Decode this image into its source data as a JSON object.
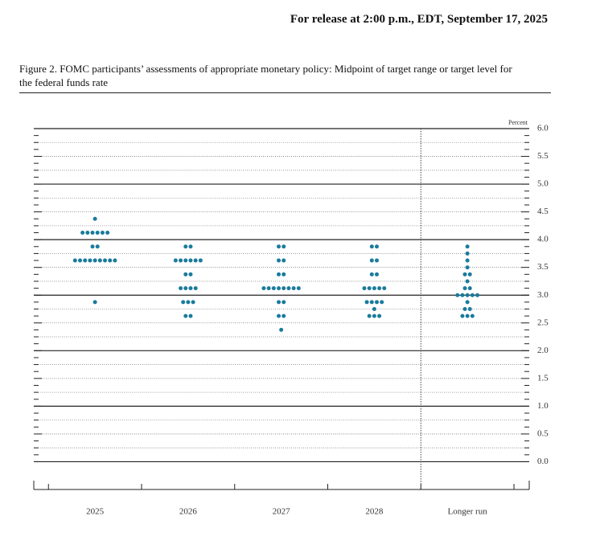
{
  "header": "For release at 2:00 p.m., EDT, September 17, 2025",
  "chart_data": {
    "type": "dot",
    "title": "Figure 2. FOMC participants’ assessments of appropriate monetary policy: Midpoint of target range or target level for the federal funds rate",
    "y_label": "Percent",
    "categories": [
      "2025",
      "2026",
      "2027",
      "2028",
      "Longer run"
    ],
    "color": "#1a7b9c",
    "dots": [
      [
        {
          "rate": 4.375,
          "count": 1
        },
        {
          "rate": 4.125,
          "count": 6
        },
        {
          "rate": 3.875,
          "count": 2
        },
        {
          "rate": 3.625,
          "count": 9
        },
        {
          "rate": 2.875,
          "count": 1
        }
      ],
      [
        {
          "rate": 3.875,
          "count": 2
        },
        {
          "rate": 3.625,
          "count": 6
        },
        {
          "rate": 3.375,
          "count": 2
        },
        {
          "rate": 3.125,
          "count": 4
        },
        {
          "rate": 2.875,
          "count": 3
        },
        {
          "rate": 2.625,
          "count": 2
        }
      ],
      [
        {
          "rate": 3.875,
          "count": 2
        },
        {
          "rate": 3.625,
          "count": 2
        },
        {
          "rate": 3.375,
          "count": 2
        },
        {
          "rate": 3.125,
          "count": 8
        },
        {
          "rate": 2.875,
          "count": 2
        },
        {
          "rate": 2.625,
          "count": 2
        },
        {
          "rate": 2.375,
          "count": 1
        }
      ],
      [
        {
          "rate": 3.875,
          "count": 2
        },
        {
          "rate": 3.625,
          "count": 2
        },
        {
          "rate": 3.375,
          "count": 2
        },
        {
          "rate": 3.125,
          "count": 5
        },
        {
          "rate": 2.875,
          "count": 4
        },
        {
          "rate": 2.75,
          "count": 1
        },
        {
          "rate": 2.625,
          "count": 3
        }
      ],
      [
        {
          "rate": 3.875,
          "count": 1
        },
        {
          "rate": 3.75,
          "count": 1
        },
        {
          "rate": 3.625,
          "count": 1
        },
        {
          "rate": 3.5,
          "count": 1
        },
        {
          "rate": 3.375,
          "count": 2
        },
        {
          "rate": 3.25,
          "count": 1
        },
        {
          "rate": 3.125,
          "count": 2
        },
        {
          "rate": 3.0,
          "count": 5
        },
        {
          "rate": 2.875,
          "count": 1
        },
        {
          "rate": 2.75,
          "count": 2
        },
        {
          "rate": 2.625,
          "count": 3
        }
      ]
    ],
    "ylim": [
      -0.5,
      6.0
    ],
    "yticks": [
      {
        "value": 0,
        "label": "0.0"
      },
      0.5,
      {
        "value": 1,
        "label": "1.0"
      },
      1.5,
      {
        "value": 2,
        "label": "2.0"
      },
      2.5,
      {
        "value": 3,
        "label": "3.0"
      },
      3.5,
      {
        "value": 4,
        "label": "4.0"
      },
      4.5,
      {
        "value": 5,
        "label": "5.0"
      },
      5.5,
      {
        "value": 6,
        "label": "6.0"
      }
    ],
    "grid": true
  }
}
